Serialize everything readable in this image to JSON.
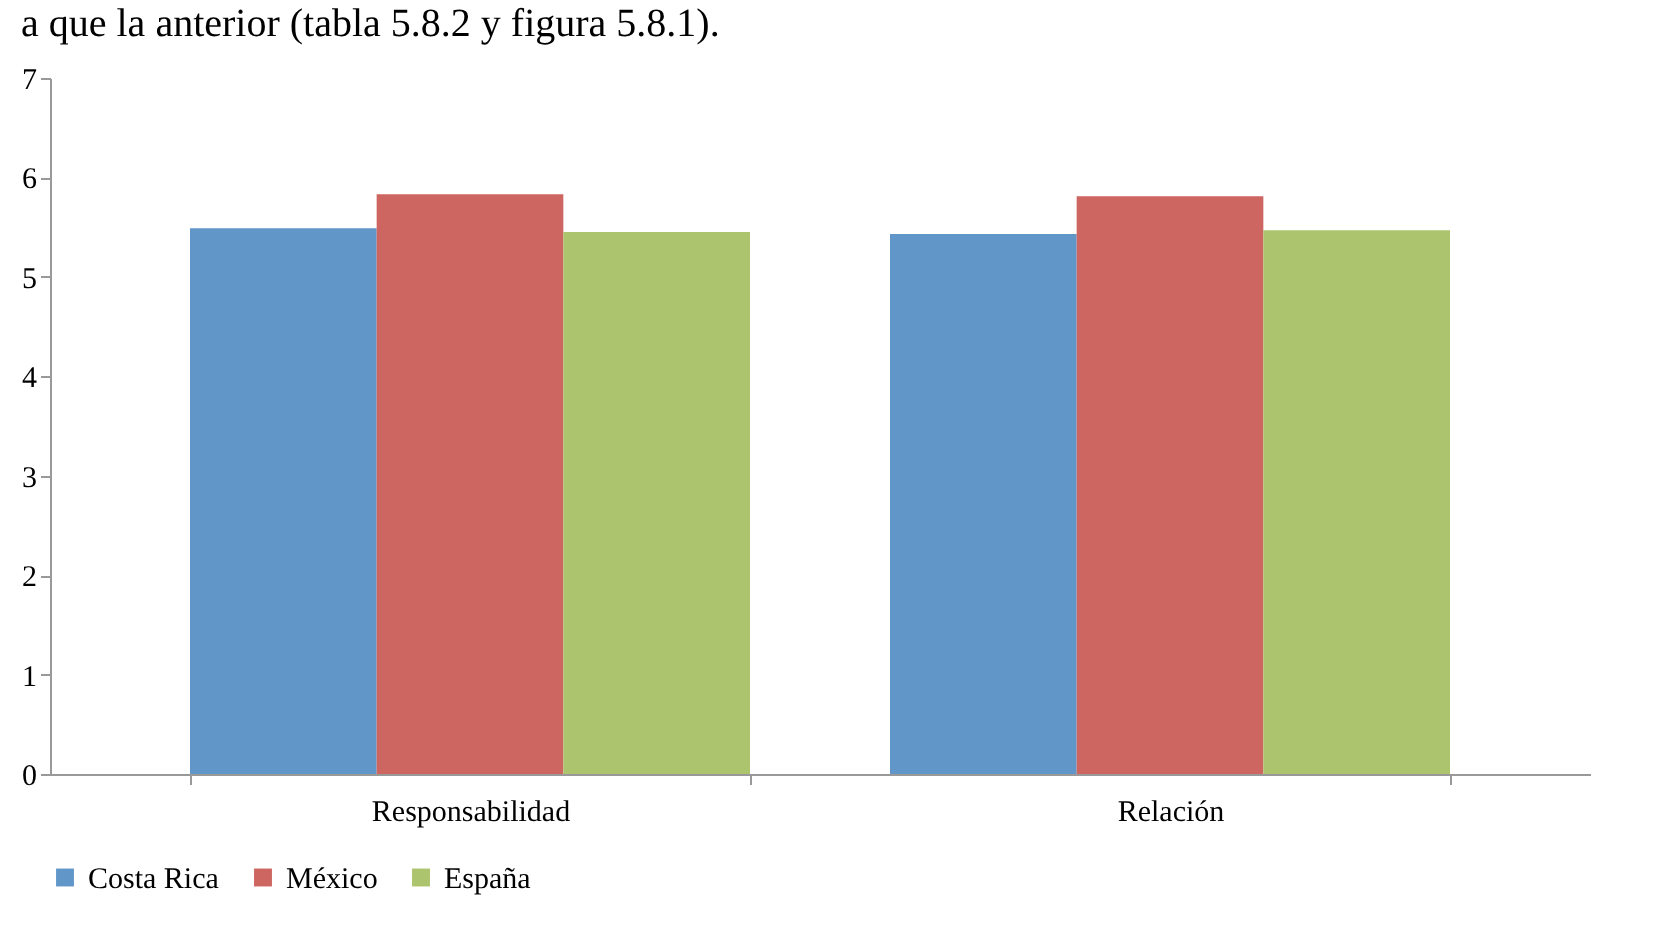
{
  "chart_data": {
    "type": "bar",
    "annotations": [
      "a que la anterior (tabla 5.8.2 y figura 5.8.1)."
    ],
    "categories": [
      "Responsabilidad",
      "Relación"
    ],
    "series": [
      {
        "name": "Costa Rica",
        "color": "#6196c9",
        "values": [
          5.49,
          5.43
        ]
      },
      {
        "name": "México",
        "color": "#cd6560",
        "values": [
          5.83,
          5.81
        ]
      },
      {
        "name": "España",
        "color": "#abc46d",
        "values": [
          5.45,
          5.47
        ]
      }
    ],
    "ylim": [
      0,
      7
    ],
    "yticks": [
      0,
      1,
      2,
      3,
      4,
      5,
      6,
      7
    ],
    "grid": false,
    "legend": "bottom"
  }
}
